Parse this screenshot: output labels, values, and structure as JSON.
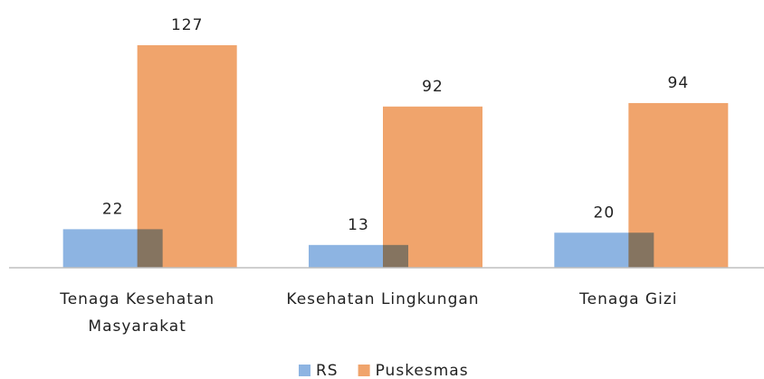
{
  "chart_data": {
    "type": "bar",
    "categories": [
      "Tenaga Kesehatan Masyarakat",
      "Kesehatan Lingkungan",
      "Tenaga Gizi"
    ],
    "series": [
      {
        "name": "RS",
        "color": "#8db4e2",
        "values": [
          22,
          13,
          20
        ]
      },
      {
        "name": "Puskesmas",
        "color": "#f0a46c",
        "values": [
          127,
          92,
          94
        ]
      }
    ],
    "data_labels": true,
    "legend": "bottom"
  }
}
